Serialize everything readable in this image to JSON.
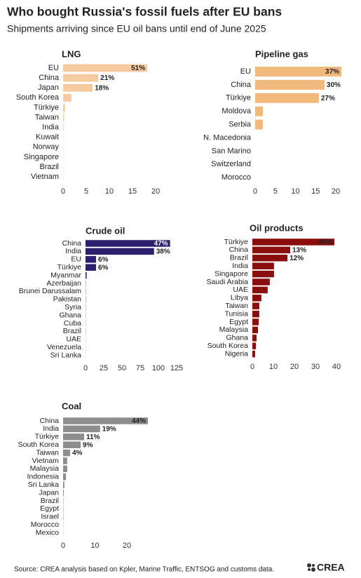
{
  "title": "Who bought Russia's fossil fuels after EU bans",
  "subtitle": "Shipments arriving since EU oil bans until end of June 2025",
  "source": "Source: CREA analysis based on Kpler, Marine Traffic, ENTSOG and customs data.",
  "logo": "CREA",
  "chart_data": [
    {
      "type": "bar",
      "title": "LNG",
      "color": "#f6cba0",
      "label_color": "#222",
      "categories": [
        "EU",
        "China",
        "Japan",
        "South Korea",
        "Türkiye",
        "Taiwan",
        "India",
        "Kuwait",
        "Norway",
        "Singapore",
        "Brazil",
        "Vietnam"
      ],
      "values": [
        18.2,
        7.6,
        6.4,
        1.8,
        0.4,
        0.2,
        0.1,
        0.05,
        0.05,
        0.05,
        0.05,
        0.05
      ],
      "share_labels": [
        "51%",
        "21%",
        "18%",
        null,
        null,
        null,
        null,
        null,
        null,
        null,
        null,
        null
      ],
      "xlim": [
        0,
        20
      ],
      "xticks": [
        0,
        5,
        10,
        15,
        20
      ]
    },
    {
      "type": "bar",
      "title": "Pipeline gas",
      "color": "#f2b97c",
      "label_color": "#222",
      "categories": [
        "EU",
        "China",
        "Türkiye",
        "Moldova",
        "Serbia",
        "N. Macedonia",
        "San Marino",
        "Switzerland",
        "Morocco"
      ],
      "values": [
        21.4,
        17.2,
        15.8,
        1.9,
        1.9,
        0,
        0,
        0,
        0
      ],
      "share_labels": [
        "37%",
        "30%",
        "27%",
        null,
        null,
        null,
        null,
        null,
        null
      ],
      "xlim": [
        0,
        22
      ],
      "xticks": [
        0,
        5,
        10,
        15,
        20
      ]
    },
    {
      "type": "bar",
      "title": "Crude oil",
      "color": "#2b1f6e",
      "label_color": "#fff",
      "categories": [
        "China",
        "India",
        "EU",
        "Türkiye",
        "Myanmar",
        "Azerbaijan",
        "Brunei Darussalam",
        "Pakistan",
        "Syria",
        "Ghana",
        "Cuba",
        "Brazil",
        "UAE",
        "Venezuela",
        "Sri Lanka"
      ],
      "values": [
        116,
        94,
        14.4,
        14.4,
        1.5,
        0.3,
        0.3,
        0.3,
        0.2,
        0.2,
        0.2,
        0.2,
        0.1,
        0.1,
        0.1
      ],
      "share_labels": [
        "47%",
        "38%",
        "6%",
        "6%",
        null,
        null,
        null,
        null,
        null,
        null,
        null,
        null,
        null,
        null,
        null
      ],
      "xlim": [
        0,
        125
      ],
      "xticks": [
        0,
        25,
        50,
        75,
        100,
        125
      ]
    },
    {
      "type": "bar",
      "title": "Oil products",
      "color": "#8b0e0e",
      "label_color": "#222",
      "categories": [
        "Türkiye",
        "China",
        "Brazil",
        "India",
        "Singapore",
        "Saudi Arabia",
        "UAE",
        "Libya",
        "Taiwan",
        "Tunisia",
        "Egypt",
        "Malaysia",
        "Ghana",
        "South Korea",
        "Nigeria"
      ],
      "values": [
        39,
        18,
        16.7,
        10.3,
        10.3,
        8.3,
        7.3,
        4.3,
        3.3,
        3.3,
        3,
        2.7,
        2,
        1.7,
        1.3
      ],
      "share_labels": [
        "26%",
        "13%",
        "12%",
        null,
        null,
        null,
        null,
        null,
        null,
        null,
        null,
        null,
        null,
        null,
        null
      ],
      "xlim": [
        0,
        40
      ],
      "xticks": [
        0,
        10,
        20,
        30,
        40
      ]
    },
    {
      "type": "bar",
      "title": "Coal",
      "color": "#8d8d8d",
      "label_color": "#222",
      "categories": [
        "China",
        "India",
        "Türkiye",
        "South Korea",
        "Taiwan",
        "Vietnam",
        "Malaysia",
        "Indonesia",
        "Sri Lanka",
        "Japan",
        "Brazil",
        "Egypt",
        "Israel",
        "Morocco",
        "Mexico"
      ],
      "values": [
        26.6,
        11.6,
        6.6,
        5.5,
        2.2,
        1.3,
        1.3,
        0.9,
        0.4,
        0.2,
        0.1,
        0.1,
        0.1,
        0.05,
        0.05
      ],
      "share_labels": [
        "44%",
        "19%",
        "11%",
        "9%",
        "4%",
        null,
        null,
        null,
        null,
        null,
        null,
        null,
        null,
        null,
        null
      ],
      "xlim": [
        0,
        30
      ],
      "xticks": [
        0,
        10,
        20
      ]
    }
  ]
}
